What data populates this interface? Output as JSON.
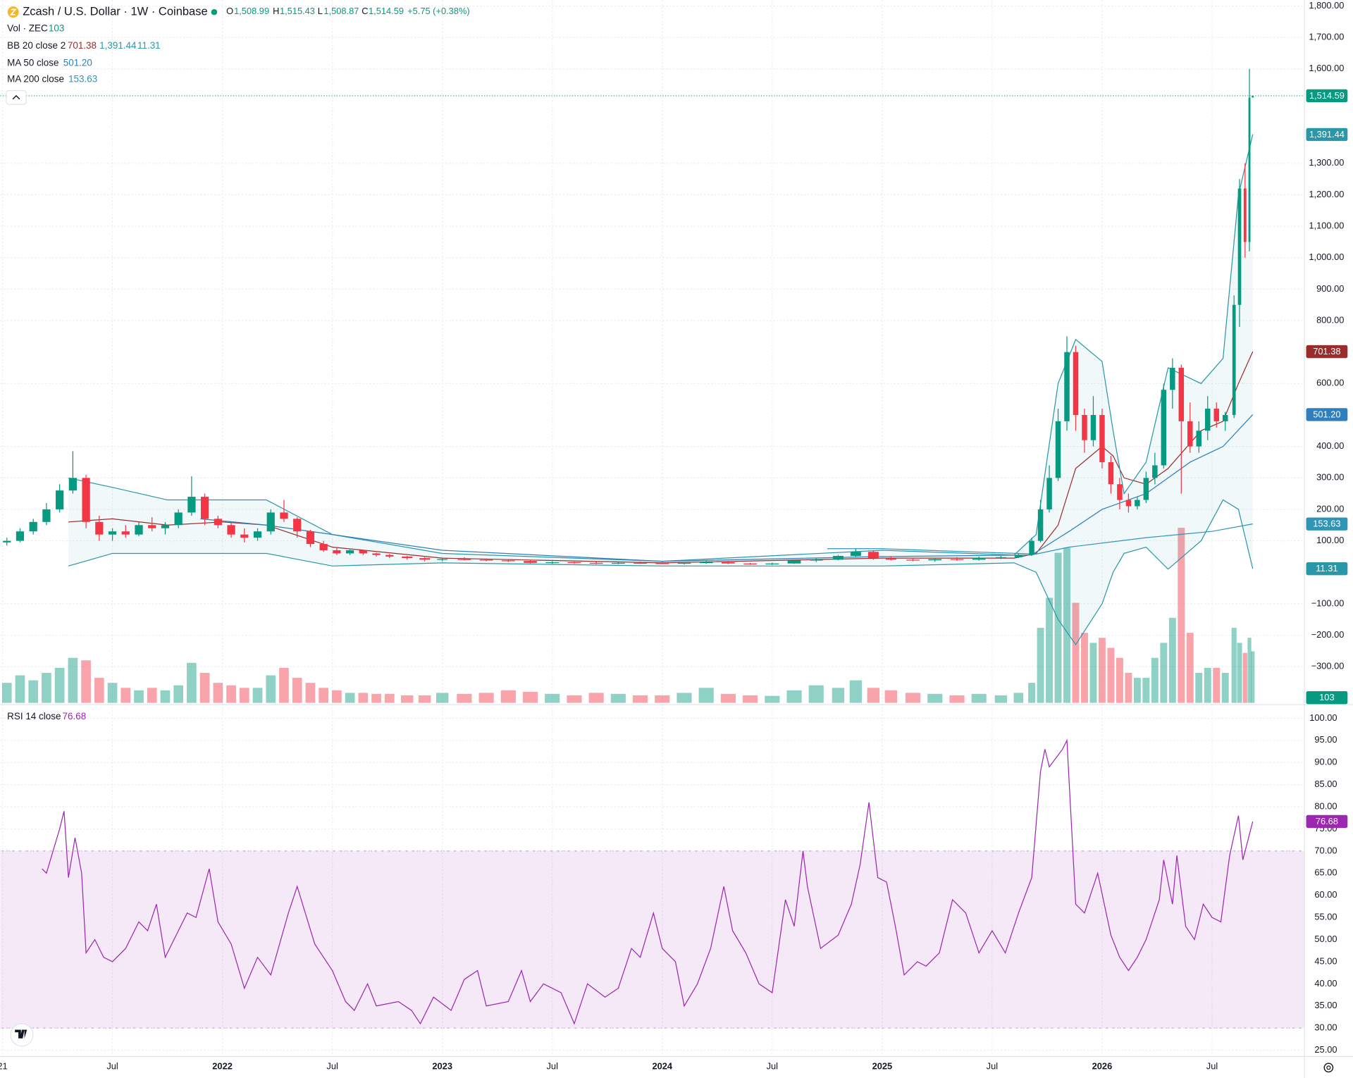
{
  "chart_data": {
    "type": "candlestick",
    "title": "Zcash / U.S. Dollar · 1W · Coinbase",
    "last": {
      "open_key": "O",
      "open": {
        "value": 1508.99,
        "label": "1,508.99"
      },
      "high_key": "H",
      "high": {
        "value": 1515.43,
        "label": "1,515.43"
      },
      "low_key": "L",
      "low": {
        "value": 1508.87,
        "label": "1,508.87"
      },
      "close_key": "C",
      "close": {
        "value": 1514.59,
        "label": "1,514.59"
      },
      "change": "+5.75 (+0.38%)"
    },
    "up_color": "#089981",
    "down_color": "#f23645",
    "xlim": [
      2020.99,
      2026.92
    ],
    "xticks": [
      {
        "value": 2021,
        "label": "21"
      },
      {
        "value": 2021.5,
        "label": "Jul"
      },
      2022,
      {
        "value": 2022.5,
        "label": "Jul"
      },
      2023,
      {
        "value": 2023.5,
        "label": "Jul"
      },
      2024,
      {
        "value": 2024.5,
        "label": "Jul"
      },
      2025,
      {
        "value": 2025.5,
        "label": "Jul"
      },
      2026,
      {
        "value": 2026.5,
        "label": "Jul"
      }
    ],
    "ylim": [
      -415,
      1819
    ],
    "yticks": [
      {
        "value": 1800,
        "label": "1,800.00"
      },
      {
        "value": 1700,
        "label": "1,700.00"
      },
      {
        "value": 1600,
        "label": "1,600.00"
      },
      {
        "value": 1300,
        "label": "1,300.00"
      },
      {
        "value": 1200,
        "label": "1,200.00"
      },
      {
        "value": 1100,
        "label": "1,100.00"
      },
      {
        "value": 1000,
        "label": "1,000.00"
      },
      {
        "value": 900,
        "label": "900.00"
      },
      {
        "value": 800,
        "label": "800.00"
      },
      {
        "value": 600,
        "label": "600.00"
      },
      {
        "value": 400,
        "label": "400.00"
      },
      {
        "value": 300,
        "label": "300.00"
      },
      {
        "value": 200,
        "label": "200.00"
      },
      {
        "value": 100,
        "label": "100.00"
      },
      {
        "value": -100,
        "label": "−100.00"
      },
      {
        "value": -200,
        "label": "−200.00"
      },
      {
        "value": -300,
        "label": "−300.00"
      }
    ],
    "grid": true,
    "candles": {
      "x": [
        2021.02,
        2021.08,
        2021.14,
        2021.2,
        2021.26,
        2021.32,
        2021.38,
        2021.44,
        2021.5,
        2021.56,
        2021.62,
        2021.68,
        2021.74,
        2021.8,
        2021.86,
        2021.92,
        2021.98,
        2022.04,
        2022.1,
        2022.16,
        2022.22,
        2022.28,
        2022.34,
        2022.4,
        2022.46,
        2022.52,
        2022.58,
        2022.64,
        2022.7,
        2022.76,
        2022.84,
        2022.92,
        2023.0,
        2023.1,
        2023.2,
        2023.3,
        2023.4,
        2023.5,
        2023.6,
        2023.7,
        2023.8,
        2023.9,
        2024.0,
        2024.1,
        2024.2,
        2024.3,
        2024.4,
        2024.5,
        2024.6,
        2024.7,
        2024.8,
        2024.88,
        2024.96,
        2025.04,
        2025.14,
        2025.24,
        2025.34,
        2025.44,
        2025.54,
        2025.62,
        2025.68,
        2025.72,
        2025.76,
        2025.8,
        2025.84,
        2025.88,
        2025.92,
        2025.96,
        2026.0,
        2026.04,
        2026.08,
        2026.12,
        2026.16,
        2026.2,
        2026.24,
        2026.28,
        2026.32,
        2026.36,
        2026.4,
        2026.44,
        2026.48,
        2026.52,
        2026.56,
        2026.6,
        2026.625,
        2026.65,
        2026.67,
        2026.685
      ],
      "open": [
        95,
        100,
        130,
        160,
        200,
        260,
        300,
        160,
        120,
        130,
        120,
        150,
        140,
        150,
        190,
        240,
        170,
        150,
        120,
        110,
        130,
        190,
        170,
        130,
        90,
        70,
        60,
        70,
        60,
        55,
        50,
        45,
        40,
        42,
        40,
        38,
        36,
        30,
        32,
        30,
        28,
        30,
        29,
        28,
        30,
        32,
        28,
        26,
        28,
        38,
        40,
        52,
        65,
        45,
        40,
        38,
        42,
        40,
        46,
        48,
        55,
        100,
        200,
        300,
        480,
        700,
        500,
        420,
        500,
        350,
        280,
        230,
        210,
        230,
        300,
        340,
        580,
        650,
        480,
        400,
        450,
        520,
        480,
        500,
        850,
        1220,
        1050,
        1508.99
      ],
      "high": [
        110,
        140,
        170,
        220,
        280,
        385,
        310,
        180,
        140,
        150,
        160,
        175,
        160,
        200,
        305,
        250,
        180,
        160,
        140,
        140,
        200,
        230,
        175,
        135,
        100,
        80,
        75,
        72,
        62,
        58,
        52,
        48,
        45,
        48,
        44,
        42,
        38,
        35,
        34,
        33,
        32,
        34,
        33,
        32,
        36,
        34,
        30,
        30,
        40,
        45,
        55,
        75,
        70,
        50,
        46,
        44,
        48,
        50,
        52,
        60,
        110,
        230,
        340,
        520,
        750,
        720,
        520,
        560,
        520,
        370,
        300,
        250,
        240,
        320,
        380,
        600,
        680,
        660,
        540,
        480,
        560,
        540,
        510,
        880,
        1250,
        1300,
        1600,
        1515.43
      ],
      "low": [
        85,
        95,
        120,
        150,
        190,
        250,
        140,
        100,
        100,
        110,
        115,
        130,
        120,
        140,
        180,
        150,
        140,
        110,
        95,
        100,
        120,
        160,
        110,
        80,
        65,
        55,
        55,
        55,
        50,
        45,
        40,
        35,
        35,
        38,
        35,
        33,
        28,
        27,
        27,
        26,
        26,
        27,
        26,
        25,
        27,
        26,
        24,
        23,
        27,
        33,
        38,
        48,
        40,
        38,
        35,
        34,
        36,
        37,
        42,
        45,
        52,
        95,
        190,
        290,
        450,
        450,
        380,
        400,
        330,
        250,
        200,
        190,
        200,
        220,
        280,
        330,
        520,
        250,
        380,
        380,
        420,
        460,
        450,
        490,
        780,
        1000,
        1020,
        1508.87
      ],
      "close": [
        100,
        130,
        160,
        200,
        260,
        300,
        160,
        120,
        130,
        120,
        150,
        140,
        150,
        190,
        240,
        170,
        150,
        120,
        110,
        130,
        190,
        170,
        130,
        90,
        70,
        60,
        70,
        60,
        55,
        50,
        45,
        40,
        42,
        40,
        38,
        36,
        30,
        32,
        30,
        28,
        30,
        29,
        28,
        30,
        32,
        28,
        26,
        28,
        38,
        40,
        52,
        65,
        45,
        40,
        38,
        42,
        40,
        46,
        48,
        55,
        100,
        200,
        300,
        480,
        700,
        500,
        420,
        500,
        350,
        280,
        230,
        210,
        230,
        300,
        340,
        580,
        650,
        480,
        400,
        450,
        520,
        480,
        500,
        850,
        1220,
        1050,
        1508.99,
        1514.59
      ]
    },
    "volume": {
      "name": "Vol · ZEC",
      "ylim": [
        0,
        1405
      ],
      "values": [
        40,
        55,
        45,
        60,
        70,
        90,
        85,
        50,
        40,
        30,
        25,
        30,
        25,
        35,
        80,
        60,
        40,
        35,
        30,
        30,
        55,
        70,
        50,
        40,
        30,
        25,
        20,
        20,
        18,
        18,
        15,
        15,
        20,
        18,
        20,
        25,
        22,
        18,
        15,
        20,
        18,
        15,
        15,
        20,
        30,
        18,
        15,
        14,
        25,
        35,
        30,
        45,
        30,
        25,
        20,
        18,
        15,
        18,
        15,
        20,
        40,
        150,
        210,
        300,
        310,
        200,
        140,
        120,
        130,
        110,
        90,
        60,
        50,
        50,
        90,
        120,
        170,
        350,
        140,
        60,
        70,
        70,
        60,
        150,
        120,
        100,
        130,
        103
      ]
    },
    "indicators": [
      {
        "name": "BB 20 close 2",
        "fill": "rgba(41,152,166,0.07)",
        "x": [
          2021.3,
          2021.5,
          2021.75,
          2022.0,
          2022.2,
          2022.5,
          2023.0,
          2024.0,
          2025.0,
          2025.6,
          2025.7,
          2025.8,
          2025.88,
          2026.0,
          2026.05,
          2026.1,
          2026.2,
          2026.3,
          2026.45,
          2026.55,
          2026.62,
          2026.685
        ],
        "lines": [
          {
            "color": "#9b2c2c",
            "values": [
              160,
              170,
              150,
              160,
              150,
              80,
              45,
              30,
              45,
              45,
              60,
              150,
              330,
              400,
              370,
              300,
              280,
              330,
              450,
              480,
              600,
              701.38
            ],
            "last": 701.38
          },
          {
            "color": "#2a97a8",
            "values": [
              300,
              270,
              230,
              230,
              230,
              120,
              60,
              35,
              70,
              55,
              120,
              600,
              740,
              670,
              450,
              250,
              350,
              650,
              600,
              680,
              1200,
              1391.44
            ],
            "last": {
              "value": 1391.44,
              "label": "1,391.44"
            }
          },
          {
            "color": "#2a97a8",
            "values": [
              20,
              60,
              60,
              60,
              60,
              20,
              30,
              20,
              20,
              30,
              0,
              -150,
              -230,
              -100,
              0,
              60,
              80,
              10,
              100,
              230,
              200,
              11.31
            ],
            "last": 11.31
          }
        ]
      },
      {
        "name": "MA 50 close",
        "x": [
          2021.9,
          2022.2,
          2022.5,
          2023.0,
          2024.0,
          2025.0,
          2025.68,
          2025.85,
          2026.0,
          2026.2,
          2026.4,
          2026.55,
          2026.685
        ],
        "lines": [
          {
            "color": "#2e7fbd",
            "values": [
              170,
              150,
              120,
              70,
              35,
              50,
              55,
              130,
              200,
              250,
              350,
              400,
              501.2
            ],
            "last": {
              "value": 501.2,
              "label": "501.20"
            }
          }
        ]
      },
      {
        "name": "MA 200 close",
        "x": [
          2024.75,
          2025.0,
          2025.4,
          2025.7,
          2025.85,
          2026.2,
          2026.5,
          2026.685
        ],
        "lines": [
          {
            "color": "#2f94b6",
            "values": [
              75,
              75,
              65,
              58,
              80,
              110,
              130,
              153.63
            ],
            "last": 153.63
          }
        ]
      }
    ],
    "rsi": {
      "name": "RSI 14 close",
      "color": "#9c27b0",
      "band": [
        30,
        70
      ],
      "band_color": "rgba(156,39,176,0.1)",
      "ylim": [
        23.6,
        102.5
      ],
      "yticks": [
        {
          "value": 100,
          "label": "100.00"
        },
        {
          "value": 95,
          "label": "95.00"
        },
        {
          "value": 90,
          "label": "90.00"
        },
        {
          "value": 85,
          "label": "85.00"
        },
        {
          "value": 80,
          "label": "80.00"
        },
        {
          "value": 75,
          "label": "75.00"
        },
        {
          "value": 70,
          "label": "70.00"
        },
        {
          "value": 65,
          "label": "65.00"
        },
        {
          "value": 60,
          "label": "60.00"
        },
        {
          "value": 55,
          "label": "55.00"
        },
        {
          "value": 50,
          "label": "50.00"
        },
        {
          "value": 45,
          "label": "45.00"
        },
        {
          "value": 40,
          "label": "40.00"
        },
        {
          "value": 35,
          "label": "35.00"
        },
        {
          "value": 30,
          "label": "30.00"
        },
        {
          "value": 25,
          "label": "25.00"
        }
      ],
      "x": [
        2021.18,
        2021.2,
        2021.26,
        2021.28,
        2021.3,
        2021.33,
        2021.36,
        2021.38,
        2021.42,
        2021.46,
        2021.5,
        2021.56,
        2021.62,
        2021.66,
        2021.7,
        2021.74,
        2021.8,
        2021.84,
        2021.88,
        2021.94,
        2021.98,
        2022.04,
        2022.1,
        2022.16,
        2022.22,
        2022.3,
        2022.34,
        2022.42,
        2022.5,
        2022.56,
        2022.6,
        2022.66,
        2022.7,
        2022.8,
        2022.86,
        2022.9,
        2022.96,
        2023.04,
        2023.1,
        2023.16,
        2023.2,
        2023.3,
        2023.36,
        2023.4,
        2023.46,
        2023.54,
        2023.6,
        2023.66,
        2023.74,
        2023.8,
        2023.86,
        2023.9,
        2023.96,
        2024.0,
        2024.06,
        2024.1,
        2024.16,
        2024.22,
        2024.28,
        2024.32,
        2024.38,
        2024.44,
        2024.5,
        2024.56,
        2024.6,
        2024.64,
        2024.66,
        2024.72,
        2024.8,
        2024.86,
        2024.9,
        2024.94,
        2024.98,
        2025.02,
        2025.06,
        2025.1,
        2025.16,
        2025.2,
        2025.26,
        2025.32,
        2025.38,
        2025.44,
        2025.5,
        2025.56,
        2025.62,
        2025.68,
        2025.72,
        2025.74,
        2025.76,
        2025.82,
        2025.84,
        2025.88,
        2025.92,
        2025.98,
        2026.04,
        2026.08,
        2026.12,
        2026.16,
        2026.2,
        2026.26,
        2026.28,
        2026.32,
        2026.34,
        2026.38,
        2026.42,
        2026.46,
        2026.5,
        2026.54,
        2026.58,
        2026.62,
        2026.64,
        2026.685
      ],
      "values": [
        66,
        65,
        75,
        79,
        64,
        73,
        65,
        47,
        50,
        46,
        45,
        48,
        54,
        52,
        58,
        46,
        52,
        56,
        55,
        66,
        54,
        49,
        39,
        46,
        42,
        56,
        62,
        49,
        43,
        36,
        34,
        40,
        35,
        36,
        34,
        31,
        37,
        34,
        41,
        43,
        35,
        36,
        43,
        36,
        40,
        38,
        31,
        40,
        37,
        39,
        48,
        46,
        56,
        48,
        45,
        35,
        40,
        48,
        62,
        52,
        47,
        40,
        38,
        59,
        53,
        70,
        62,
        48,
        51,
        58,
        67,
        81,
        64,
        63,
        53,
        42,
        45,
        44,
        47,
        59,
        56,
        47,
        52,
        47,
        56,
        64,
        88,
        93,
        89,
        93,
        95,
        58,
        56,
        65,
        51,
        46,
        43,
        46,
        50,
        59,
        68,
        58,
        69,
        53,
        50,
        58,
        55,
        54,
        69,
        78,
        68,
        76.68
      ],
      "last": 76.68
    }
  }
}
